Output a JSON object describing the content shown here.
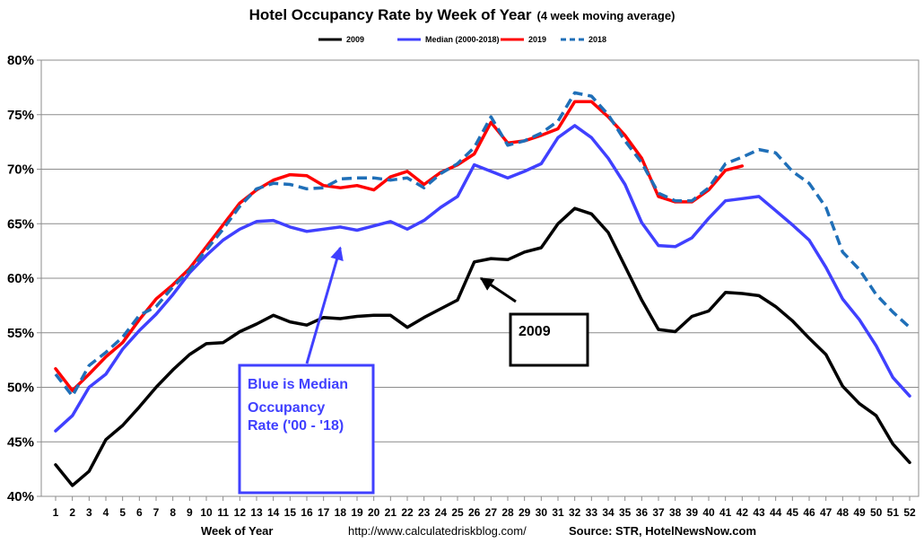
{
  "chart_data": {
    "type": "line",
    "title": "Hotel Occupancy Rate by  Week of Year",
    "subtitle": "(4 week moving average)",
    "xlabel": "Week of Year",
    "ylabel": "",
    "ylim": [
      40,
      80
    ],
    "yticks": [
      40,
      45,
      50,
      55,
      60,
      65,
      70,
      75,
      80
    ],
    "ytick_labels": [
      "40%",
      "45%",
      "50%",
      "55%",
      "60%",
      "65%",
      "70%",
      "75%",
      "80%"
    ],
    "x": [
      1,
      2,
      3,
      4,
      5,
      6,
      7,
      8,
      9,
      10,
      11,
      12,
      13,
      14,
      15,
      16,
      17,
      18,
      19,
      20,
      21,
      22,
      23,
      24,
      25,
      26,
      27,
      28,
      29,
      30,
      31,
      32,
      33,
      34,
      35,
      36,
      37,
      38,
      39,
      40,
      41,
      42,
      43,
      44,
      45,
      46,
      47,
      48,
      49,
      50,
      51,
      52
    ],
    "series": [
      {
        "name": "2009",
        "color": "#000000",
        "style": "solid",
        "values": [
          42.9,
          41.0,
          42.3,
          45.2,
          46.5,
          48.2,
          50.0,
          51.6,
          53.0,
          54.0,
          54.1,
          55.1,
          55.8,
          56.6,
          56.0,
          55.7,
          56.4,
          56.3,
          56.5,
          56.6,
          56.6,
          55.5,
          56.4,
          57.2,
          58.0,
          61.5,
          61.8,
          61.7,
          62.4,
          62.8,
          65.0,
          66.4,
          65.9,
          64.2,
          61.1,
          58.0,
          55.3,
          55.1,
          56.5,
          57.0,
          58.7,
          58.6,
          58.4,
          57.4,
          56.1,
          54.5,
          53.0,
          50.1,
          48.5,
          47.4,
          44.8,
          43.1
        ]
      },
      {
        "name": "Median (2000-2018)",
        "color": "#4040ff",
        "style": "solid",
        "values": [
          46.0,
          47.4,
          50.0,
          51.2,
          53.5,
          55.2,
          56.7,
          58.5,
          60.5,
          62.1,
          63.5,
          64.5,
          65.2,
          65.3,
          64.7,
          64.3,
          64.5,
          64.7,
          64.4,
          64.8,
          65.2,
          64.5,
          65.3,
          66.5,
          67.5,
          70.4,
          69.8,
          69.2,
          69.8,
          70.5,
          72.9,
          74.0,
          72.9,
          71.0,
          68.6,
          65.1,
          63.0,
          62.9,
          63.7,
          65.5,
          67.1,
          67.3,
          67.5,
          66.2,
          64.9,
          63.5,
          61.0,
          58.1,
          56.2,
          53.8,
          50.9,
          49.2
        ]
      },
      {
        "name": "2019",
        "color": "#ff0000",
        "style": "solid",
        "values": [
          51.7,
          49.7,
          51.2,
          52.8,
          54.1,
          56.2,
          58.1,
          59.4,
          60.9,
          62.9,
          64.9,
          66.9,
          68.1,
          69.0,
          69.5,
          69.4,
          68.5,
          68.3,
          68.5,
          68.1,
          69.3,
          69.8,
          68.6,
          69.7,
          70.4,
          71.4,
          74.3,
          72.4,
          72.6,
          73.1,
          73.7,
          76.2,
          76.2,
          74.8,
          73.1,
          71.0,
          67.5,
          67.0,
          67.0,
          68.1,
          69.9,
          70.3,
          null,
          null,
          null,
          null,
          null,
          null,
          null,
          null,
          null,
          null
        ]
      },
      {
        "name": "2018",
        "color": "#1f6fb8",
        "style": "dashed",
        "values": [
          51.2,
          49.2,
          52.0,
          53.2,
          54.6,
          56.6,
          57.4,
          59.2,
          60.7,
          62.6,
          64.5,
          66.6,
          68.2,
          68.7,
          68.6,
          68.2,
          68.3,
          69.1,
          69.2,
          69.2,
          69.0,
          69.2,
          68.3,
          69.6,
          70.5,
          72.0,
          74.8,
          72.2,
          72.6,
          73.3,
          74.4,
          77.0,
          76.7,
          75.0,
          72.6,
          70.6,
          67.8,
          67.1,
          67.1,
          68.3,
          70.5,
          71.1,
          71.8,
          71.5,
          69.8,
          68.7,
          66.5,
          62.4,
          60.8,
          58.5,
          56.9,
          55.5
        ]
      }
    ],
    "legend": [
      "2009",
      "Median (2000-2018)",
      "2019",
      "2018"
    ],
    "legend_position": "top",
    "grid": true,
    "annotations": {
      "blue_box": {
        "lines": [
          "Blue is Median",
          "Occupancy",
          "Rate ('00 - '18)"
        ],
        "arrow_to": [
          18,
          62.8
        ]
      },
      "black_box": {
        "label": "2009",
        "arrow_to": [
          26.4,
          60.0
        ]
      }
    },
    "footer": {
      "url": "http://www.calculatedriskblog.com/",
      "source": "Source: STR, HotelNewsNow.com"
    }
  }
}
